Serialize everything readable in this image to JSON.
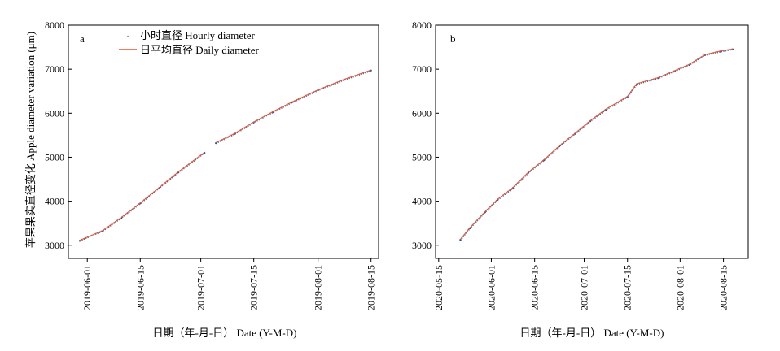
{
  "ylabel": "苹果果实直径变化 Apple diameter variation (μm)",
  "xlabel": "日期（年-月-日） Date (Y-M-D)",
  "legend": {
    "hourly": "小时直径 Hourly diameter",
    "daily": "日平均直径 Daily diameter"
  },
  "colors": {
    "hourly": "#1f4e9c",
    "daily": "#e8542a",
    "axis": "#000000"
  },
  "chart_data": [
    {
      "type": "line",
      "panel": "a",
      "ylim": [
        2700,
        8000
      ],
      "yticks": [
        3000,
        4000,
        5000,
        6000,
        7000,
        8000
      ],
      "xlim": [
        "2019-05-27",
        "2019-08-17"
      ],
      "xticks": [
        "2019-06-01",
        "2019-06-15",
        "2019-07-01",
        "2019-07-15",
        "2019-08-01",
        "2019-08-15"
      ],
      "legend": "top-left",
      "series": [
        {
          "name": "小时直径 Hourly diameter",
          "style": "points",
          "segments": [
            [
              [
                "2019-05-30",
                3100
              ],
              [
                "2019-06-05",
                3320
              ],
              [
                "2019-06-10",
                3620
              ],
              [
                "2019-06-15",
                3950
              ],
              [
                "2019-06-20",
                4300
              ],
              [
                "2019-06-25",
                4650
              ],
              [
                "2019-07-02",
                5100
              ]
            ],
            [
              [
                "2019-07-05",
                5320
              ],
              [
                "2019-07-10",
                5530
              ],
              [
                "2019-07-15",
                5790
              ],
              [
                "2019-07-20",
                6020
              ],
              [
                "2019-07-25",
                6240
              ],
              [
                "2019-08-01",
                6520
              ],
              [
                "2019-08-08",
                6760
              ],
              [
                "2019-08-15",
                6970
              ]
            ]
          ]
        },
        {
          "name": "日平均直径 Daily diameter",
          "style": "line",
          "segments": [
            [
              [
                "2019-05-30",
                3110
              ],
              [
                "2019-06-05",
                3330
              ],
              [
                "2019-06-10",
                3630
              ],
              [
                "2019-06-15",
                3960
              ],
              [
                "2019-06-20",
                4310
              ],
              [
                "2019-06-25",
                4660
              ],
              [
                "2019-07-02",
                5110
              ]
            ],
            [
              [
                "2019-07-05",
                5330
              ],
              [
                "2019-07-10",
                5540
              ],
              [
                "2019-07-15",
                5800
              ],
              [
                "2019-07-20",
                6030
              ],
              [
                "2019-07-25",
                6250
              ],
              [
                "2019-08-01",
                6530
              ],
              [
                "2019-08-08",
                6770
              ],
              [
                "2019-08-15",
                6980
              ]
            ]
          ]
        }
      ]
    },
    {
      "type": "line",
      "panel": "b",
      "ylim": [
        2700,
        8000
      ],
      "yticks": [
        3000,
        4000,
        5000,
        6000,
        7000,
        8000
      ],
      "xlim": [
        "2020-05-14",
        "2020-08-23"
      ],
      "xticks": [
        "2020-05-15",
        "2020-06-01",
        "2020-06-15",
        "2020-07-01",
        "2020-07-15",
        "2020-08-01",
        "2020-08-15"
      ],
      "series": [
        {
          "name": "小时直径 Hourly diameter",
          "style": "points",
          "segments": [
            [
              [
                "2020-05-22",
                3120
              ],
              [
                "2020-05-25",
                3380
              ],
              [
                "2020-05-30",
                3750
              ],
              [
                "2020-06-03",
                4030
              ],
              [
                "2020-06-08",
                4300
              ],
              [
                "2020-06-13",
                4650
              ],
              [
                "2020-06-18",
                4930
              ],
              [
                "2020-06-23",
                5250
              ],
              [
                "2020-06-28",
                5530
              ],
              [
                "2020-07-03",
                5820
              ],
              [
                "2020-07-08",
                6080
              ],
              [
                "2020-07-15",
                6370
              ],
              [
                "2020-07-18",
                6660
              ],
              [
                "2020-07-25",
                6800
              ],
              [
                "2020-07-30",
                6950
              ],
              [
                "2020-08-04",
                7100
              ],
              [
                "2020-08-09",
                7320
              ],
              [
                "2020-08-14",
                7400
              ],
              [
                "2020-08-18",
                7450
              ]
            ]
          ]
        },
        {
          "name": "日平均直径 Daily diameter",
          "style": "line",
          "segments": [
            [
              [
                "2020-05-22",
                3130
              ],
              [
                "2020-05-25",
                3390
              ],
              [
                "2020-05-30",
                3760
              ],
              [
                "2020-06-03",
                4040
              ],
              [
                "2020-06-08",
                4310
              ],
              [
                "2020-06-13",
                4660
              ],
              [
                "2020-06-18",
                4940
              ],
              [
                "2020-06-23",
                5260
              ],
              [
                "2020-06-28",
                5540
              ],
              [
                "2020-07-03",
                5830
              ],
              [
                "2020-07-08",
                6090
              ],
              [
                "2020-07-15",
                6380
              ],
              [
                "2020-07-18",
                6670
              ],
              [
                "2020-07-25",
                6810
              ],
              [
                "2020-07-30",
                6960
              ],
              [
                "2020-08-04",
                7110
              ],
              [
                "2020-08-09",
                7330
              ],
              [
                "2020-08-14",
                7410
              ],
              [
                "2020-08-18",
                7460
              ]
            ]
          ]
        }
      ]
    }
  ]
}
